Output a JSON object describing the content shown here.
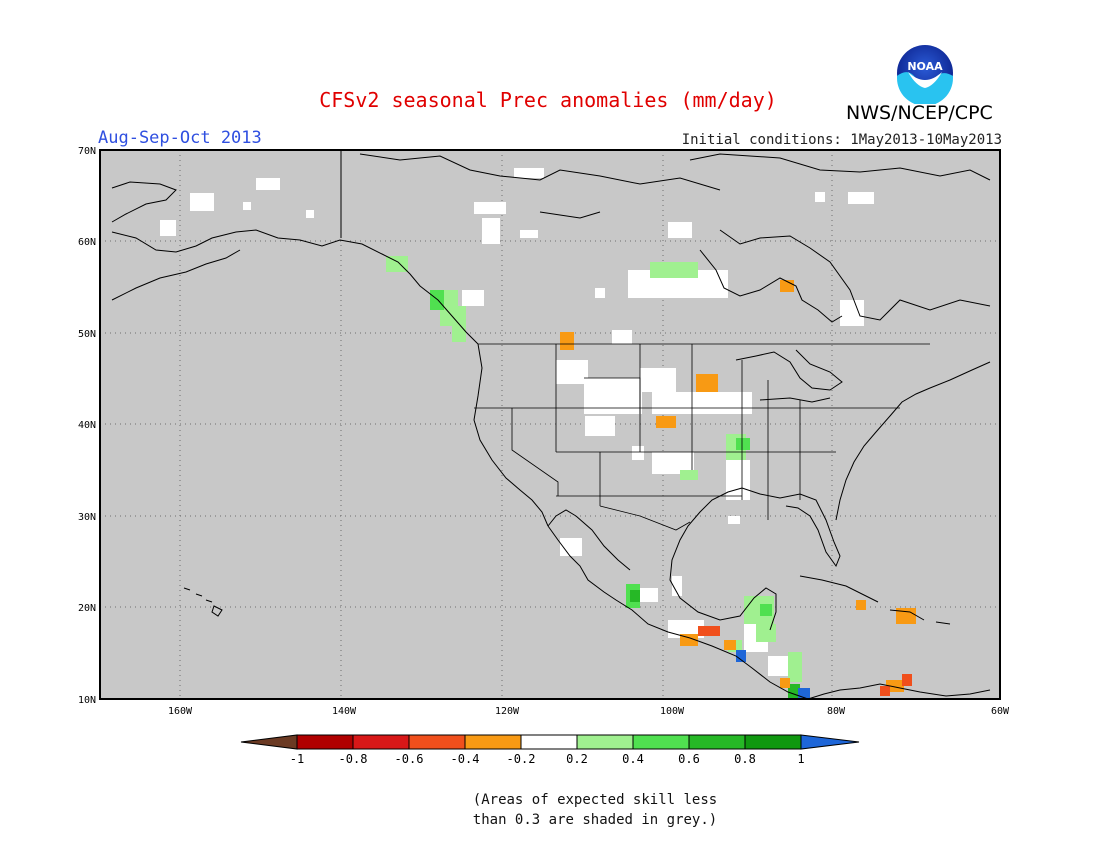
{
  "header": {
    "title": "CFSv2 seasonal Prec anomalies (mm/day)",
    "season": "Aug-Sep-Oct 2013",
    "initial_conditions": "Initial conditions: 1May2013-10May2013",
    "agency": "NWS/NCEP/CPC",
    "logo_text": "NOAA"
  },
  "colors": {
    "title": "#e00000",
    "season": "#2f4fe0",
    "land_mask_grey": "#c8c8c8",
    "frame": "#000000"
  },
  "map": {
    "region": "North America",
    "lon_range": [
      -172,
      -60
    ],
    "lat_range": [
      10,
      70
    ],
    "lat_labels": [
      "70N",
      "60N",
      "50N",
      "40N",
      "30N",
      "20N",
      "10N"
    ],
    "lon_labels": [
      "160W",
      "140W",
      "120W",
      "100W",
      "80W",
      "60W"
    ],
    "gridlines": "dotted"
  },
  "colorbar": {
    "labels": [
      "-1",
      "-0.8",
      "-0.6",
      "-0.4",
      "-0.2",
      "0.2",
      "0.4",
      "0.6",
      "0.8",
      "1"
    ],
    "colors": [
      "#6b3a23",
      "#b00000",
      "#d81818",
      "#f04f1c",
      "#f89a14",
      "#ffffff",
      "#a0f090",
      "#50e050",
      "#26b826",
      "#109810",
      "#1e66d8"
    ]
  },
  "footnote": {
    "line1": "(Areas of expected skill less",
    "line2": "than 0.3 are shaded in grey.)"
  }
}
